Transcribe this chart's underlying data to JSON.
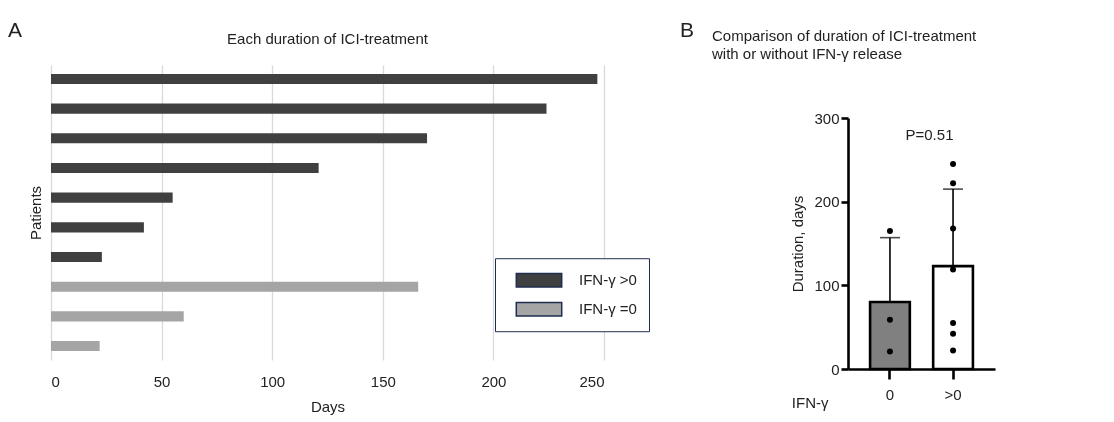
{
  "chart_data": [
    {
      "type": "bar",
      "orientation": "horizontal",
      "title": "Each duration of ICI-treatment",
      "xlabel": "Days",
      "ylabel": "Patients",
      "categories": [
        null,
        null,
        null,
        null,
        null,
        null,
        null,
        null,
        null,
        null
      ],
      "series": [
        {
          "name": "IFN-γ >0",
          "color": "#404040",
          "values": [
            247,
            224,
            170,
            121,
            55,
            42,
            23,
            null,
            null,
            null
          ]
        },
        {
          "name": "IFN-γ =0",
          "color": "#a5a5a5",
          "values": [
            null,
            null,
            null,
            null,
            null,
            null,
            null,
            166,
            60,
            22
          ]
        }
      ],
      "xlim": [
        0,
        250
      ],
      "xticks": [
        0,
        50,
        100,
        150,
        200,
        250
      ],
      "grid": "x",
      "legend": "right",
      "annotations": [
        "A"
      ]
    },
    {
      "type": "bar",
      "title": "Comparison of duration of ICI-treatment with or without IFN-γ release",
      "xlabel": "IFN-γ",
      "ylabel": "Duration, days",
      "categories": [
        "0",
        ">0"
      ],
      "series": [
        {
          "type": "bar",
          "values": [
            80,
            123
          ],
          "colors": [
            "#808080",
            "#ffffff"
          ],
          "errors": [
            [
              80,
              157
            ],
            [
              123,
              215
            ]
          ]
        },
        {
          "type": "scatter",
          "color": "#000000",
          "x": [
            "0",
            "0",
            "0",
            ">0",
            ">0",
            ">0",
            ">0",
            ">0",
            ">0",
            ">0"
          ],
          "values": [
            165,
            59,
            21,
            245,
            222,
            168,
            119,
            55,
            42,
            22
          ]
        }
      ],
      "ylim": [
        0,
        300
      ],
      "yticks": [
        0,
        100,
        200,
        300
      ],
      "marker": "circle",
      "annotations": [
        "B",
        "P=0.51"
      ]
    }
  ]
}
